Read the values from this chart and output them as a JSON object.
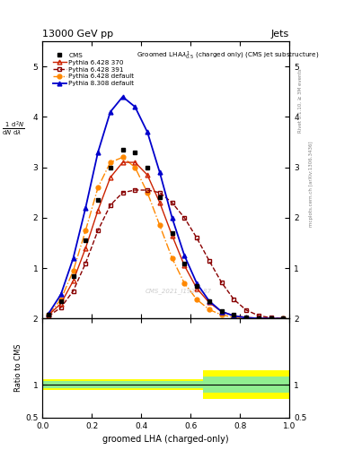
{
  "title_top": "13000 GeV pp",
  "title_right": "Jets",
  "watermark": "CMS_2021_I1920187",
  "right_label_top": "Rivet 3.1.10, ≥ 3M events",
  "right_label_bot": "mcplots.cern.ch [arXiv:1306.3436]",
  "xlabel": "groomed LHA (charged-only)",
  "ylabel_ratio": "Ratio to CMS",
  "cms_x": [
    0.025,
    0.075,
    0.125,
    0.175,
    0.225,
    0.275,
    0.325,
    0.375,
    0.425,
    0.475,
    0.525,
    0.575,
    0.625,
    0.675,
    0.725,
    0.775,
    0.825,
    0.875,
    0.925,
    0.975
  ],
  "cms_y": [
    0.08,
    0.35,
    0.85,
    1.55,
    2.35,
    3.0,
    3.35,
    3.3,
    3.0,
    2.4,
    1.7,
    1.1,
    0.65,
    0.35,
    0.15,
    0.07,
    0.03,
    0.01,
    0.004,
    0.001
  ],
  "p6370_x": [
    0.025,
    0.075,
    0.125,
    0.175,
    0.225,
    0.275,
    0.325,
    0.375,
    0.425,
    0.475,
    0.525,
    0.575,
    0.625,
    0.675,
    0.725,
    0.775,
    0.825,
    0.875,
    0.925,
    0.975
  ],
  "p6370_y": [
    0.07,
    0.3,
    0.75,
    1.4,
    2.15,
    2.8,
    3.1,
    3.1,
    2.85,
    2.3,
    1.65,
    1.05,
    0.6,
    0.32,
    0.14,
    0.06,
    0.025,
    0.008,
    0.003,
    0.001
  ],
  "p6391_x": [
    0.025,
    0.075,
    0.125,
    0.175,
    0.225,
    0.275,
    0.325,
    0.375,
    0.425,
    0.475,
    0.525,
    0.575,
    0.625,
    0.675,
    0.725,
    0.775,
    0.825,
    0.875,
    0.925,
    0.975
  ],
  "p6391_y": [
    0.05,
    0.22,
    0.55,
    1.1,
    1.75,
    2.25,
    2.5,
    2.55,
    2.55,
    2.5,
    2.3,
    2.0,
    1.6,
    1.15,
    0.72,
    0.38,
    0.17,
    0.06,
    0.018,
    0.005
  ],
  "p6def_x": [
    0.025,
    0.075,
    0.125,
    0.175,
    0.225,
    0.275,
    0.325,
    0.375,
    0.425,
    0.475,
    0.525,
    0.575,
    0.625,
    0.675,
    0.725,
    0.775,
    0.825,
    0.875,
    0.925,
    0.975
  ],
  "p6def_y": [
    0.08,
    0.38,
    0.95,
    1.75,
    2.6,
    3.1,
    3.2,
    3.0,
    2.5,
    1.85,
    1.2,
    0.7,
    0.38,
    0.18,
    0.075,
    0.028,
    0.009,
    0.003,
    0.001,
    0.0003
  ],
  "p8def_x": [
    0.025,
    0.075,
    0.125,
    0.175,
    0.225,
    0.275,
    0.325,
    0.375,
    0.425,
    0.475,
    0.525,
    0.575,
    0.625,
    0.675,
    0.725,
    0.775,
    0.825,
    0.875,
    0.925,
    0.975
  ],
  "p8def_y": [
    0.1,
    0.48,
    1.2,
    2.2,
    3.3,
    4.1,
    4.4,
    4.2,
    3.7,
    2.9,
    2.0,
    1.25,
    0.7,
    0.35,
    0.14,
    0.055,
    0.018,
    0.006,
    0.002,
    0.0005
  ],
  "ratio_bins": [
    0.0,
    0.05,
    0.1,
    0.15,
    0.2,
    0.25,
    0.3,
    0.35,
    0.4,
    0.45,
    0.5,
    0.55,
    0.6,
    0.625,
    0.65,
    0.7,
    0.75,
    0.8,
    0.85,
    0.9,
    0.95,
    1.0
  ],
  "ratio_green_lo": [
    0.95,
    0.95,
    0.95,
    0.95,
    0.95,
    0.95,
    0.95,
    0.95,
    0.95,
    0.95,
    0.95,
    0.95,
    0.95,
    0.95,
    0.88,
    0.88,
    0.88,
    0.88,
    0.88,
    0.88,
    0.88,
    0.88
  ],
  "ratio_green_hi": [
    1.05,
    1.05,
    1.05,
    1.05,
    1.05,
    1.05,
    1.05,
    1.05,
    1.05,
    1.05,
    1.05,
    1.05,
    1.05,
    1.05,
    1.12,
    1.12,
    1.12,
    1.12,
    1.12,
    1.12,
    1.12,
    1.12
  ],
  "ratio_yellow_lo": [
    0.92,
    0.92,
    0.92,
    0.92,
    0.92,
    0.92,
    0.92,
    0.92,
    0.92,
    0.92,
    0.92,
    0.92,
    0.92,
    0.92,
    0.78,
    0.78,
    0.78,
    0.78,
    0.78,
    0.78,
    0.78,
    0.78
  ],
  "ratio_yellow_hi": [
    1.08,
    1.08,
    1.08,
    1.08,
    1.08,
    1.08,
    1.08,
    1.08,
    1.08,
    1.08,
    1.08,
    1.08,
    1.08,
    1.08,
    1.22,
    1.22,
    1.22,
    1.22,
    1.22,
    1.22,
    1.22,
    1.22
  ],
  "ylim_main": [
    0,
    5.5
  ],
  "ylim_ratio": [
    0.5,
    2.0
  ],
  "yticks_main": [
    1,
    2,
    3,
    4,
    5
  ],
  "yticks_ratio": [
    0.5,
    1.0,
    2.0
  ],
  "color_cms": "#000000",
  "color_p6370": "#cc2200",
  "color_p6391": "#880000",
  "color_p6def": "#ff8800",
  "color_p8def": "#0000cc"
}
